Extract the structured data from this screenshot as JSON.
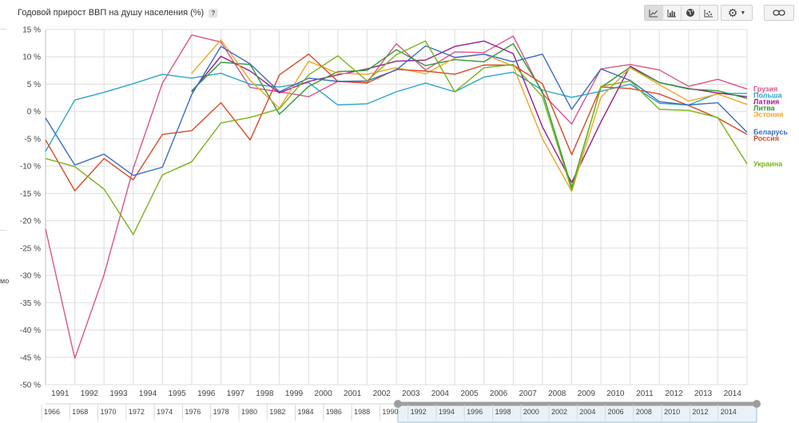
{
  "header": {
    "title": "Годовой прирост ВВП на душу населения (%)",
    "help": "?"
  },
  "toolbar": {
    "view_buttons": [
      {
        "icon": "line-chart-icon"
      },
      {
        "icon": "bar-chart-icon"
      },
      {
        "icon": "globe-map-icon"
      },
      {
        "icon": "scatter-chart-icon"
      }
    ],
    "settings_icon": "gear-icon",
    "link_icon": "link-icon"
  },
  "left_fragment": "мо",
  "colors": {
    "grid": "#dddddd",
    "axis_text": "#444444",
    "slider_fill": "#e9f2f8",
    "slider_border": "#9cbfd6",
    "slider_handle": "#9e9e9e"
  },
  "chart_data": {
    "type": "line",
    "title": "Годовой прирост ВВП на душу населения (%)",
    "ylim": [
      -50,
      15
    ],
    "ytick_step": 5,
    "y_unit_suffix": " %",
    "grid": true,
    "legend_position": "right, labels aligned with line ends",
    "x": [
      1991,
      1992,
      1993,
      1994,
      1995,
      1996,
      1997,
      1998,
      1999,
      2000,
      2001,
      2002,
      2003,
      2004,
      2005,
      2006,
      2007,
      2008,
      2009,
      2010,
      2011,
      2012,
      2013,
      2014,
      2015
    ],
    "x_tick_labels": [
      "1991",
      "1992",
      "1993",
      "1994",
      "1995",
      "1996",
      "1997",
      "1998",
      "1999",
      "2000",
      "2001",
      "2002",
      "2003",
      "2004",
      "2005",
      "2006",
      "2007",
      "2008",
      "2009",
      "2010",
      "2011",
      "2012",
      "2013",
      "2014"
    ],
    "series": [
      {
        "name": "Грузия",
        "color": "#d9558a",
        "values": [
          -21.5,
          -45.2,
          -29.9,
          -10.4,
          5.2,
          14.0,
          12.7,
          4.4,
          3.6,
          2.7,
          5.5,
          5.3,
          12.4,
          7.6,
          10.9,
          10.8,
          13.8,
          3.3,
          -2.3,
          7.8,
          8.6,
          7.6,
          4.6,
          5.9,
          4.1
        ]
      },
      {
        "name": "Польша",
        "color": "#2ba7c4",
        "values": [
          -7.3,
          2.1,
          3.5,
          5.1,
          6.8,
          6.1,
          7.0,
          5.0,
          4.5,
          5.3,
          1.2,
          1.4,
          3.6,
          5.2,
          3.6,
          6.3,
          7.2,
          3.9,
          2.6,
          3.7,
          5.0,
          1.5,
          1.2,
          3.3,
          3.3
        ]
      },
      {
        "name": "Латвия",
        "color": "#9a1c8b",
        "values": [
          null,
          null,
          null,
          null,
          null,
          3.6,
          10.1,
          7.4,
          3.4,
          5.5,
          6.7,
          7.8,
          9.2,
          9.4,
          11.9,
          12.9,
          10.6,
          -2.8,
          -13.0,
          -1.9,
          8.3,
          5.3,
          4.2,
          3.4,
          2.7
        ]
      },
      {
        "name": "Литва",
        "color": "#2e9a35",
        "values": [
          null,
          null,
          null,
          null,
          null,
          3.8,
          9.0,
          8.6,
          -0.5,
          4.6,
          7.3,
          7.5,
          11.3,
          8.4,
          9.5,
          9.1,
          12.4,
          3.6,
          -13.9,
          4.4,
          8.1,
          5.3,
          4.1,
          3.8,
          2.4
        ]
      },
      {
        "name": "Эстония",
        "color": "#f0a524",
        "values": [
          null,
          null,
          null,
          null,
          null,
          7.0,
          13.1,
          5.7,
          0.6,
          9.2,
          7.0,
          6.8,
          8.0,
          6.9,
          9.8,
          10.5,
          8.3,
          -5.0,
          -14.6,
          2.6,
          8.0,
          4.9,
          1.9,
          3.2,
          1.3
        ]
      },
      {
        "name": "Россия",
        "color": "#d64b26",
        "values": [
          -5.2,
          -14.5,
          -8.6,
          -12.5,
          -4.2,
          -3.5,
          1.6,
          -5.2,
          6.7,
          10.5,
          5.5,
          5.2,
          7.7,
          7.4,
          6.8,
          8.5,
          8.5,
          5.1,
          -7.9,
          4.5,
          4.2,
          3.2,
          1.1,
          -1.2,
          -4.2
        ]
      },
      {
        "name": "Беларусь",
        "color": "#3b6dc2",
        "values": [
          -1.2,
          -9.8,
          -7.8,
          -11.7,
          -10.2,
          3.1,
          11.9,
          8.7,
          3.6,
          6.1,
          5.5,
          5.6,
          7.6,
          12.0,
          9.9,
          10.5,
          9.1,
          10.5,
          0.4,
          7.8,
          5.7,
          1.8,
          1.2,
          1.6,
          -3.8
        ]
      },
      {
        "name": "Украина",
        "color": "#7ab31a",
        "values": [
          -8.6,
          -10.1,
          -14.2,
          -22.5,
          -11.6,
          -9.2,
          -2.1,
          -1.1,
          0.5,
          6.7,
          10.2,
          5.6,
          10.4,
          12.9,
          3.6,
          8.0,
          8.6,
          2.7,
          -14.4,
          4.6,
          5.6,
          0.4,
          0.2,
          -1.1,
          -9.6
        ]
      }
    ]
  },
  "timeline": {
    "labels": [
      "1966",
      "1968",
      "1970",
      "1972",
      "1974",
      "1976",
      "1978",
      "1980",
      "1982",
      "1984",
      "1986",
      "1988",
      "1990",
      "1992",
      "1994",
      "1996",
      "1998",
      "2000",
      "2002",
      "2004",
      "2006",
      "2008",
      "2010",
      "2012",
      "2014"
    ],
    "range_from": 1991,
    "range_to": 2015
  }
}
